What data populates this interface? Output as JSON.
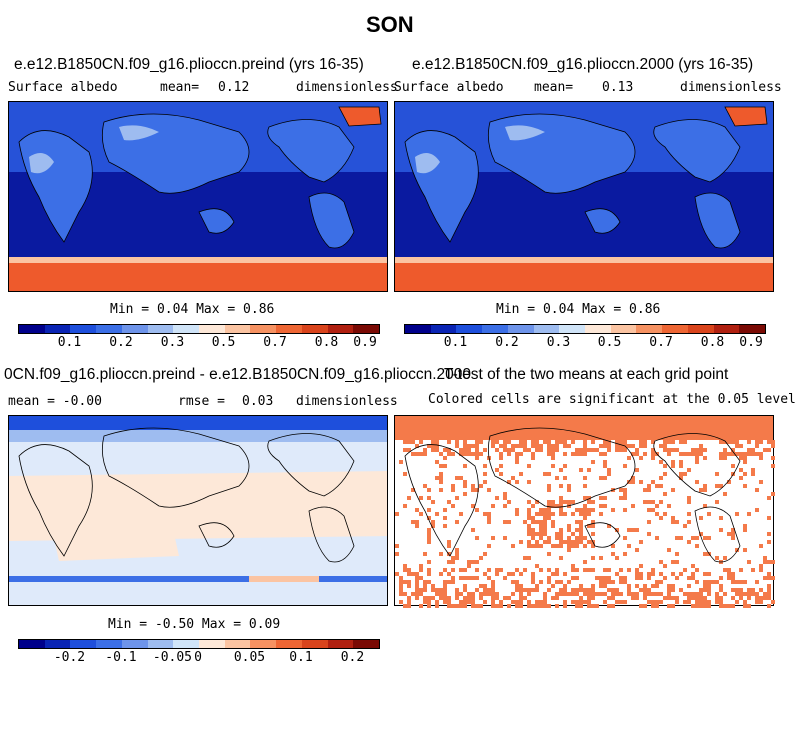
{
  "figure": {
    "title": "SON"
  },
  "panels": [
    {
      "title": "e.e12.B1850CN.f09_g16.plioccn.preind (yrs 16-35)",
      "variable": "Surface albedo",
      "stat_label": "mean=",
      "stat_value": "0.12",
      "units": "dimensionless",
      "min_max": "Min =   0.04 Max =   0.86",
      "field": "albedo"
    },
    {
      "title": "e.e12.B1850CN.f09_g16.plioccn.2000 (yrs 16-35)",
      "variable": "Surface albedo",
      "stat_label": "mean=",
      "stat_value": "0.13",
      "units": "dimensionless",
      "min_max": "Min =   0.04 Max =   0.86",
      "field": "albedo"
    },
    {
      "title": "0CN.f09_g16.plioccn.preind - e.e12.B1850CN.f09_g16.plioccn.2000",
      "variable": "mean = -0.00",
      "stat_label": "rmse =",
      "stat_value": "0.03",
      "units": "dimensionless",
      "min_max": "Min = -0.50 Max =   0.09",
      "field": "diff"
    },
    {
      "title": "T-test of the two means at each grid point",
      "subtitle": "Colored cells are significant at the 0.05 level",
      "field": "ttest"
    }
  ],
  "colorbars": {
    "albedo": {
      "colors": [
        "#00008b",
        "#0a24b4",
        "#1e4fdc",
        "#3c6fe6",
        "#6e94ea",
        "#9ebcf0",
        "#d0e4f8",
        "#fde8d8",
        "#fbc4a2",
        "#f69262",
        "#ee6634",
        "#d9441c",
        "#b02010",
        "#7a0a04"
      ],
      "tick_labels": [
        "0.1",
        "0.2",
        "0.3",
        "0.5",
        "0.7",
        "0.8",
        "0.9"
      ],
      "tick_fractions": [
        0.143,
        0.286,
        0.429,
        0.571,
        0.714,
        0.857,
        0.964
      ]
    },
    "diff": {
      "colors": [
        "#00008b",
        "#0a24b4",
        "#1e4fdc",
        "#3c6fe6",
        "#6e94ea",
        "#9ebcf0",
        "#d0e4f8",
        "#fde8d8",
        "#fbc4a2",
        "#f69262",
        "#ee6634",
        "#d9441c",
        "#b02010",
        "#7a0a04"
      ],
      "tick_labels": [
        "-0.2",
        "-0.1",
        "-0.05",
        "0",
        "0.05",
        "0.1",
        "0.2"
      ],
      "tick_fractions": [
        0.143,
        0.286,
        0.429,
        0.5,
        0.643,
        0.786,
        0.929
      ]
    }
  },
  "colors": {
    "ocean_low": "#0a1aa0",
    "land_mid": "#3c6fe6",
    "ice_high": "#ee5a2c",
    "diff_neutral": "#dfeafa",
    "ttest_sig": "#f47a4a"
  }
}
